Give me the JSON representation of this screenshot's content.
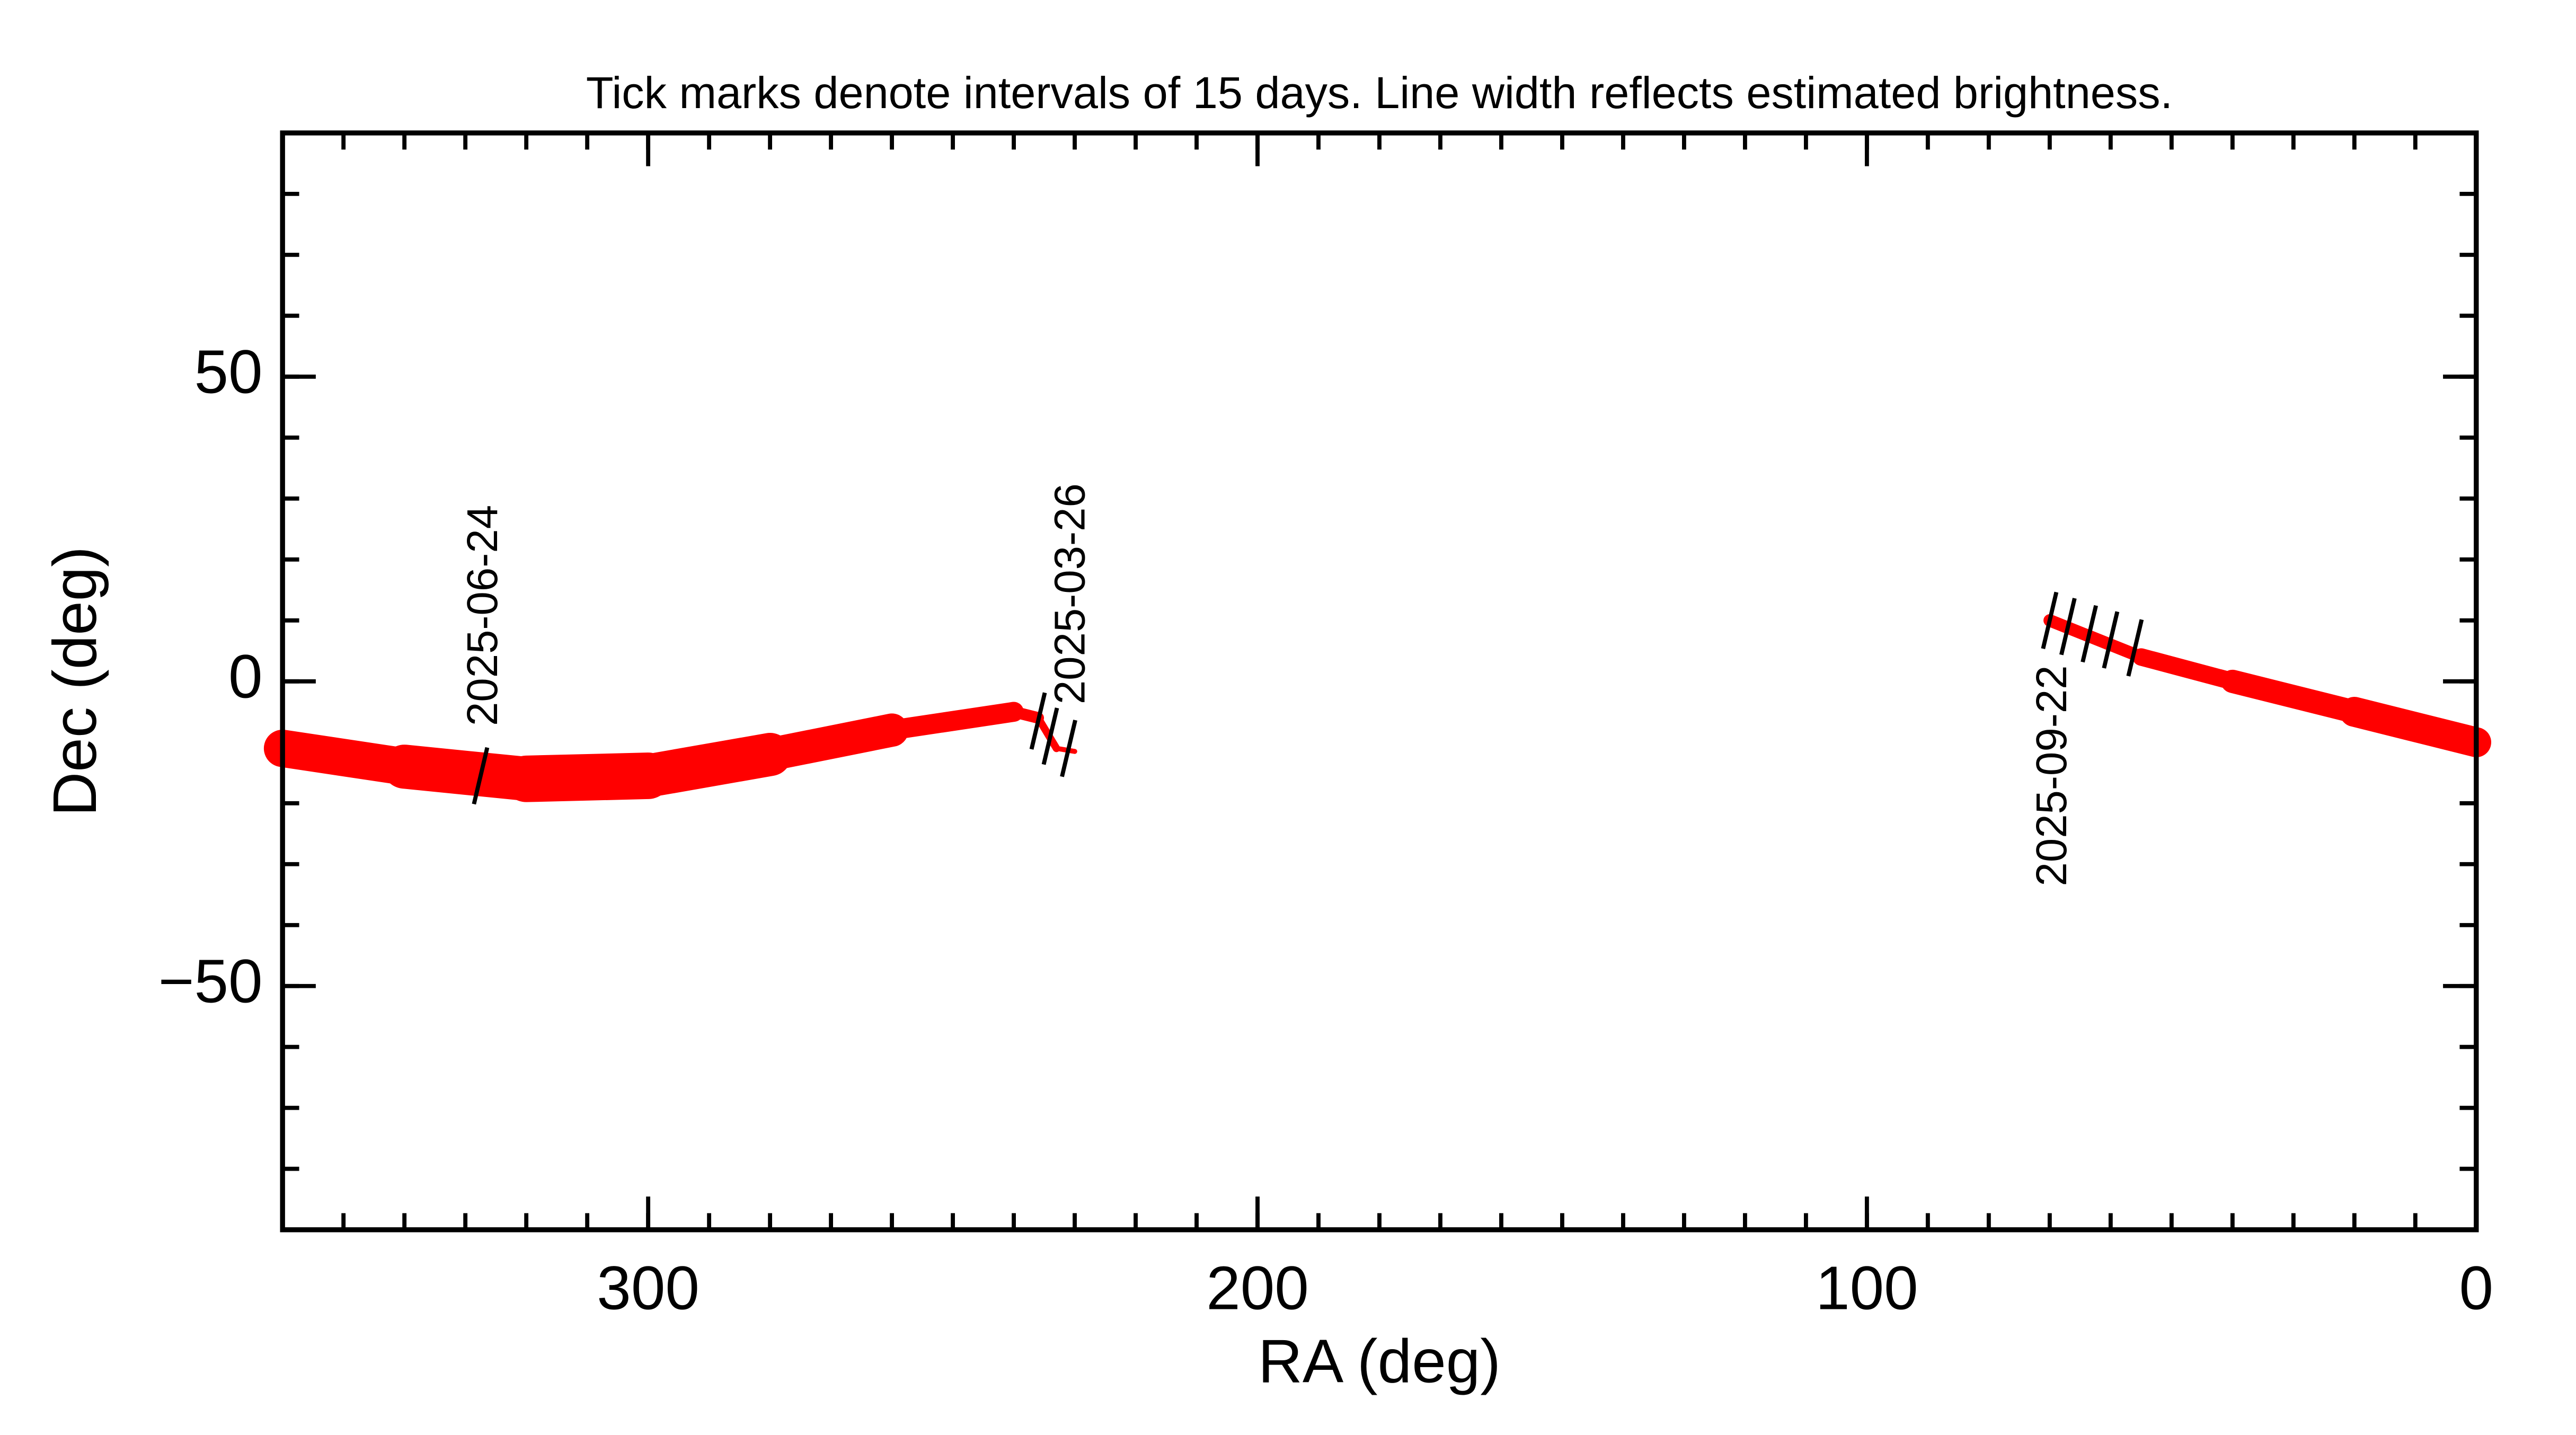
{
  "chart_data": {
    "type": "line",
    "title": "Tick marks denote intervals of 15 days.  Line width reflects estimated brightness.",
    "x_label": "RA (deg)",
    "y_label": "Dec (deg)",
    "xlim": [
      360,
      0
    ],
    "xticks": [
      300,
      200,
      100,
      0
    ],
    "x_minor_step": 10,
    "ylim": [
      -90,
      90
    ],
    "yticks": [
      {
        "value": -50,
        "label": "−50"
      },
      0,
      50
    ],
    "y_minor_step": 10,
    "series": [
      {
        "color": "#ff0000",
        "x": [
          230,
          233,
          236,
          240,
          260,
          280,
          300,
          320,
          340,
          360,
          null,
          0,
          20,
          40,
          55,
          70
        ],
        "values": [
          -11.5,
          -11,
          -6,
          -5,
          -8,
          -12,
          -15.5,
          -16,
          -14,
          -11,
          null,
          -10,
          -5,
          0,
          4,
          10
        ],
        "line_widths": [
          3,
          3,
          6,
          8,
          16,
          24,
          28,
          28,
          25,
          20,
          null,
          20,
          16,
          12,
          9,
          6
        ]
      }
    ],
    "date_ticks": [
      {
        "x": 327.5,
        "y": -15.5
      },
      {
        "x": 236,
        "y": -6.5
      },
      {
        "x": 234,
        "y": -9
      },
      {
        "x": 231,
        "y": -11
      },
      {
        "x": 70,
        "y": 10
      },
      {
        "x": 67,
        "y": 9
      },
      {
        "x": 63.5,
        "y": 7.8
      },
      {
        "x": 60,
        "y": 6.8
      },
      {
        "x": 56,
        "y": 5.5
      }
    ],
    "annotations": [
      {
        "text": "2025-06-24",
        "x": 327.5,
        "y": -15.5
      },
      {
        "text": "2025-03-26",
        "x": 236,
        "y": -6.5
      },
      {
        "text": "2025-09-22",
        "x": 70,
        "y": 10
      }
    ]
  }
}
